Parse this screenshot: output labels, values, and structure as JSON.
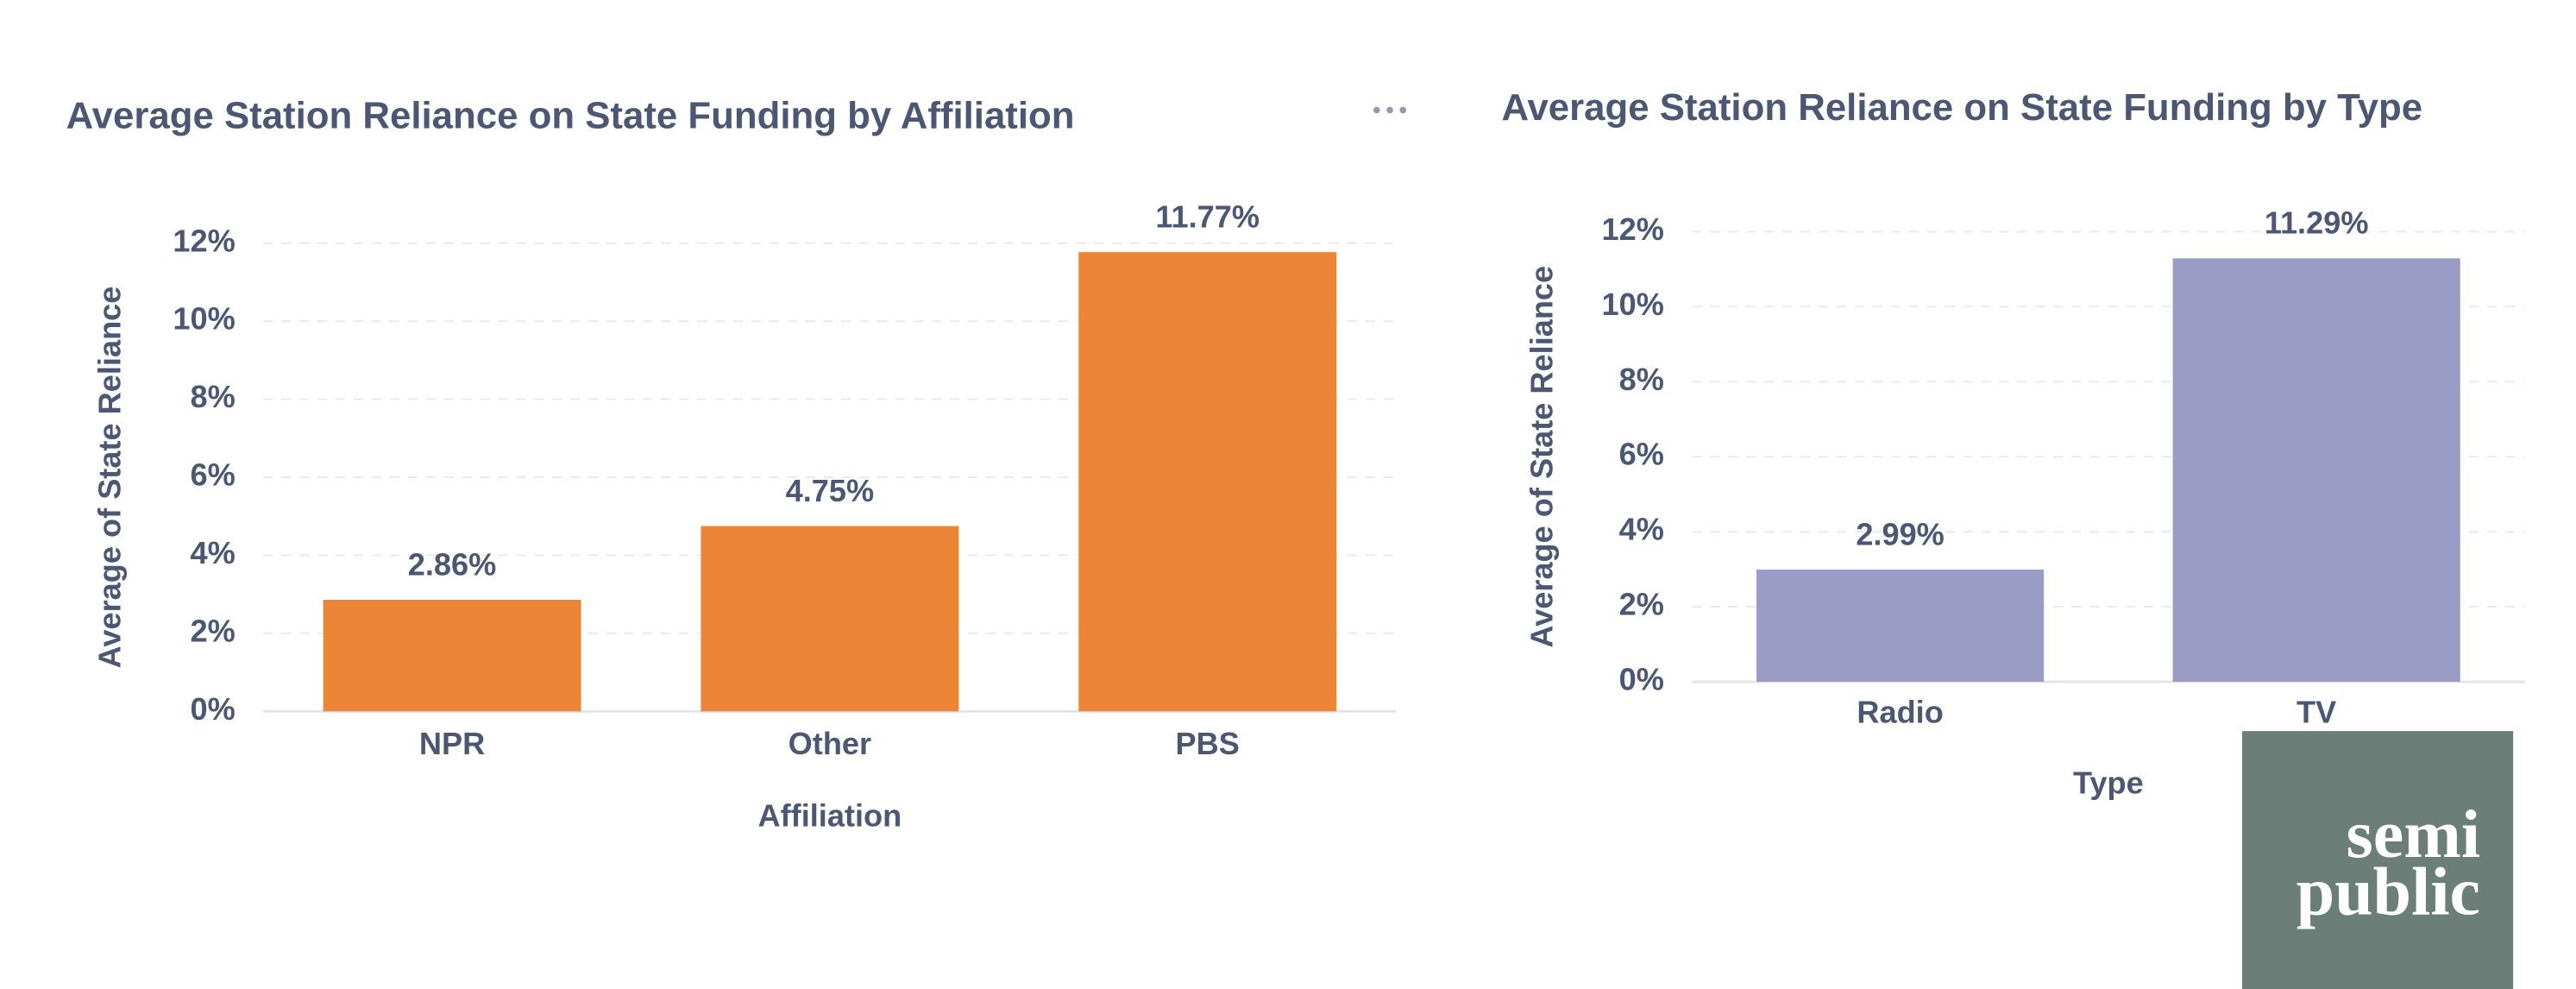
{
  "chart_data": [
    {
      "type": "bar",
      "title": "Average Station Reliance on State Funding by Affiliation",
      "x_label": "Affiliation",
      "y_label": "Average of State Reliance",
      "categories": [
        "NPR",
        "Other",
        "PBS"
      ],
      "values": [
        2.86,
        4.75,
        11.77
      ],
      "value_labels": [
        "2.86%",
        "4.75%",
        "11.77%"
      ],
      "color": "#ed8536",
      "ylim": [
        0,
        12
      ],
      "yticks": [
        {
          "value": 0,
          "label": "0%"
        },
        {
          "value": 2,
          "label": "2%"
        },
        {
          "value": 4,
          "label": "4%"
        },
        {
          "value": 6,
          "label": "6%"
        },
        {
          "value": 8,
          "label": "8%"
        },
        {
          "value": 10,
          "label": "10%"
        },
        {
          "value": 12,
          "label": "12%"
        }
      ],
      "grid": true
    },
    {
      "type": "bar",
      "title": "Average Station Reliance on State Funding by Type",
      "x_label": "Type",
      "y_label": "Average of State Reliance",
      "categories": [
        "Radio",
        "TV"
      ],
      "values": [
        2.99,
        11.29
      ],
      "value_labels": [
        "2.99%",
        "11.29%"
      ],
      "color": "#9a9cc6",
      "ylim": [
        0,
        12
      ],
      "yticks": [
        {
          "value": 0,
          "label": "0%"
        },
        {
          "value": 2,
          "label": "2%"
        },
        {
          "value": 4,
          "label": "4%"
        },
        {
          "value": 6,
          "label": "6%"
        },
        {
          "value": 8,
          "label": "8%"
        },
        {
          "value": 10,
          "label": "10%"
        },
        {
          "value": 12,
          "label": "12%"
        }
      ],
      "grid": true
    }
  ],
  "logo": {
    "lines": [
      "semi",
      "public"
    ]
  }
}
